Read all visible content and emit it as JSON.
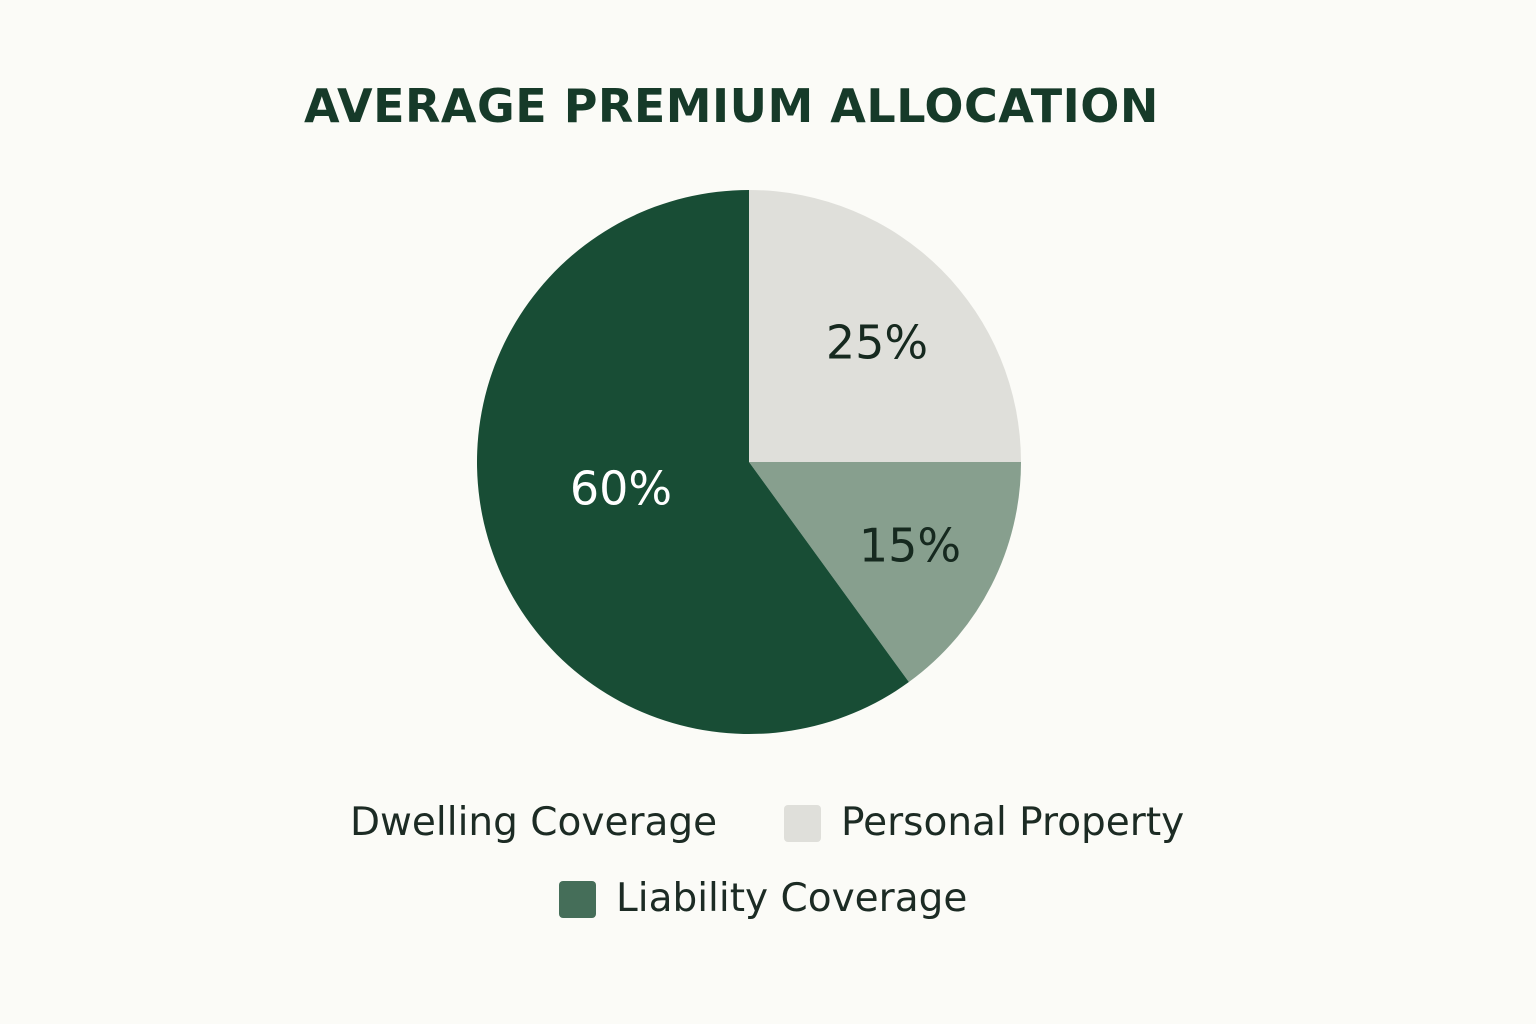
{
  "chart_data": {
    "type": "pie",
    "title": "AVERAGE PREMIUM ALLOCATION",
    "slices": [
      {
        "label": "Dwelling Coverage",
        "value": 60,
        "value_label": "60%",
        "color": "#184d35",
        "text_color": "#ffffff"
      },
      {
        "label": "Personal Property",
        "value": 25,
        "value_label": "25%",
        "color": "#dfdfda",
        "text_color": "#16291f"
      },
      {
        "label": "Liability Coverage",
        "value": 15,
        "value_label": "15%",
        "color": "#879f8e",
        "text_color": "#16291f"
      }
    ],
    "legend": {
      "placement": "bottom",
      "entries": [
        {
          "label": "Dwelling Coverage",
          "swatch": "none"
        },
        {
          "label": "Personal Property",
          "swatch": "#dfdfda"
        },
        {
          "label": "Liability Coverage",
          "swatch": "#456e59"
        }
      ]
    }
  },
  "colors": {
    "background": "#fbfbf7",
    "title": "#163a29"
  }
}
